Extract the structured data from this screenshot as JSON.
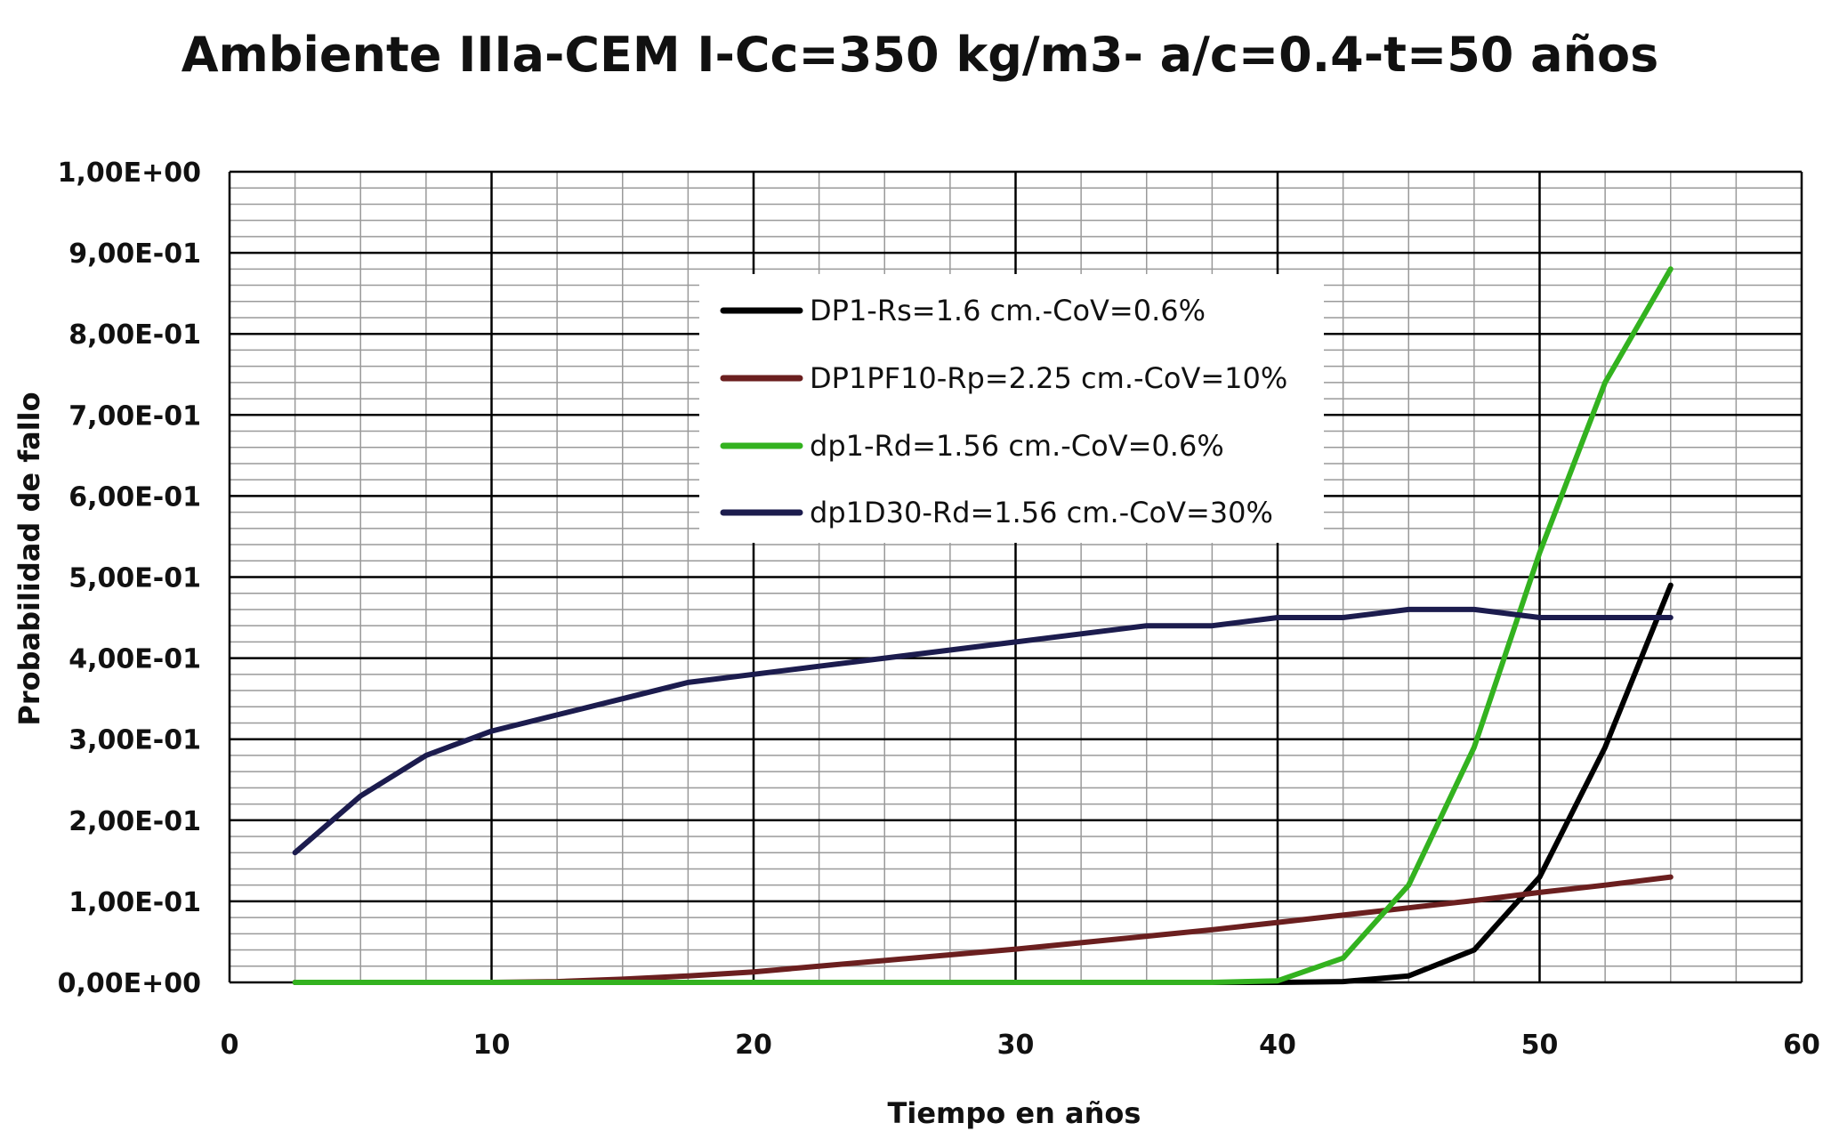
{
  "chart_data": {
    "type": "line",
    "title": "Ambiente IIIa-CEM I-Cc=350 kg/m3- a/c=0.4-t=50 años",
    "xlabel": "Tiempo en años",
    "ylabel": "Probabilidad de fallo",
    "xlim": [
      0,
      60
    ],
    "ylim": [
      0,
      1
    ],
    "x_ticks": [
      "0",
      "10",
      "20",
      "30",
      "40",
      "50",
      "60"
    ],
    "y_ticks": [
      "0,00E+00",
      "1,00E-01",
      "2,00E-01",
      "3,00E-01",
      "4,00E-01",
      "5,00E-01",
      "6,00E-01",
      "7,00E-01",
      "8,00E-01",
      "9,00E-01",
      "1,00E+00"
    ],
    "grid": true,
    "legend_position": "inside-top-center",
    "series": [
      {
        "name": "DP1-Rs=1.6 cm.-CoV=0.6%",
        "color": "#000000",
        "x": [
          2.5,
          5,
          7.5,
          10,
          12.5,
          15,
          17.5,
          20,
          22.5,
          25,
          27.5,
          30,
          32.5,
          35,
          37.5,
          40,
          42.5,
          45,
          47.5,
          50,
          52.5,
          55
        ],
        "y": [
          0,
          0,
          0,
          0,
          0,
          0,
          0,
          0,
          0,
          0,
          0,
          0,
          0,
          0,
          0,
          0,
          0.001,
          0.008,
          0.04,
          0.13,
          0.29,
          0.49
        ]
      },
      {
        "name": "DP1PF10-Rp=2.25 cm.-CoV=10%",
        "color": "#6b1f1f",
        "x": [
          2.5,
          5,
          7.5,
          10,
          12.5,
          15,
          17.5,
          20,
          22.5,
          25,
          27.5,
          30,
          32.5,
          35,
          37.5,
          40,
          42.5,
          45,
          47.5,
          50,
          52.5,
          55
        ],
        "y": [
          0,
          0,
          0,
          0,
          0.001,
          0.004,
          0.008,
          0.013,
          0.02,
          0.027,
          0.034,
          0.041,
          0.049,
          0.057,
          0.065,
          0.074,
          0.083,
          0.092,
          0.101,
          0.111,
          0.12,
          0.13
        ]
      },
      {
        "name": "dp1-Rd=1.56 cm.-CoV=0.6%",
        "color": "#33b21f",
        "x": [
          2.5,
          5,
          7.5,
          10,
          12.5,
          15,
          17.5,
          20,
          22.5,
          25,
          27.5,
          30,
          32.5,
          35,
          37.5,
          40,
          42.5,
          45,
          47.5,
          50,
          52.5,
          55
        ],
        "y": [
          0,
          0,
          0,
          0,
          0,
          0,
          0,
          0,
          0,
          0,
          0,
          0,
          0,
          0,
          0,
          0.002,
          0.03,
          0.12,
          0.29,
          0.53,
          0.74,
          0.88
        ]
      },
      {
        "name": "dp1D30-Rd=1.56 cm.-CoV=30%",
        "color": "#1c1c4e",
        "x": [
          2.5,
          5,
          7.5,
          10,
          12.5,
          15,
          17.5,
          20,
          22.5,
          25,
          27.5,
          30,
          32.5,
          35,
          37.5,
          40,
          42.5,
          45,
          47.5,
          50,
          52.5,
          55
        ],
        "y": [
          0.16,
          0.23,
          0.28,
          0.31,
          0.33,
          0.35,
          0.37,
          0.38,
          0.39,
          0.4,
          0.41,
          0.42,
          0.43,
          0.44,
          0.44,
          0.45,
          0.45,
          0.46,
          0.46,
          0.45,
          0.45,
          0.45
        ]
      }
    ]
  }
}
